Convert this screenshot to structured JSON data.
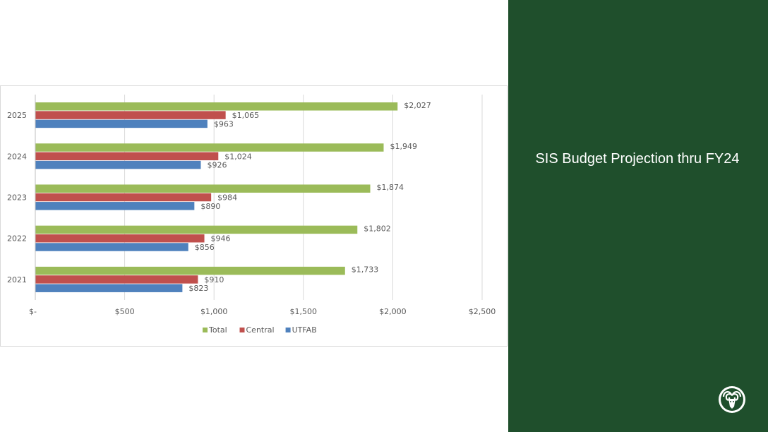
{
  "slide": {
    "title": "SIS Budget Projection thru FY24",
    "logo_icon": "ram-head-logo-icon",
    "panel_color": "#1f4f2c"
  },
  "chart_data": {
    "type": "bar",
    "orientation": "horizontal",
    "categories": [
      "2025",
      "2024",
      "2023",
      "2022",
      "2021"
    ],
    "series": [
      {
        "name": "Total",
        "color": "#9bbb59",
        "values": [
          2027,
          1949,
          1874,
          1802,
          1733
        ],
        "labels": [
          "$2,027",
          "$1,949",
          "$1,874",
          "$1,802",
          "$1,733"
        ]
      },
      {
        "name": "Central",
        "color": "#c0504d",
        "values": [
          1065,
          1024,
          984,
          946,
          910
        ],
        "labels": [
          "$1,065",
          "$1,024",
          "$984",
          "$946",
          "$910"
        ]
      },
      {
        "name": "UTFAB",
        "color": "#4f81bd",
        "values": [
          963,
          926,
          890,
          856,
          823
        ],
        "labels": [
          "$963",
          "$926",
          "$890",
          "$856",
          "$823"
        ]
      }
    ],
    "xlim": [
      0,
      2500
    ],
    "xticks": [
      0,
      500,
      1000,
      1500,
      2000,
      2500
    ],
    "xtick_labels": [
      "$-",
      "$500",
      "$1,000",
      "$1,500",
      "$2,000",
      "$2,500"
    ],
    "grid": true,
    "legend_position": "bottom",
    "title": "",
    "xlabel": "",
    "ylabel": ""
  }
}
